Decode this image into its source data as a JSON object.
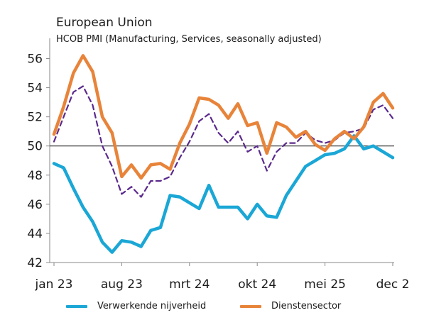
{
  "chart_data": {
    "type": "line",
    "title": "European Union",
    "subtitle": "HCOB PMI (Manufacturing, Services, seasonally adjusted)",
    "x_ticks": [
      "jan 23",
      "aug 23",
      "mrt 24",
      "okt 24",
      "mei 25",
      "dec 2"
    ],
    "ylim": [
      42,
      57
    ],
    "y_ticks": [
      "42",
      "44",
      "46",
      "48",
      "50",
      "52",
      "54",
      "56"
    ],
    "reference_line": 50,
    "x": [
      "jan 23",
      "feb 23",
      "mrt 23",
      "apr 23",
      "mei 23",
      "jun 23",
      "jul 23",
      "aug 23",
      "sep 23",
      "okt 23",
      "nov 23",
      "dec 23",
      "jan 24",
      "feb 24",
      "mrt 24",
      "apr 24",
      "mei 24",
      "jun 24",
      "jul 24",
      "aug 24",
      "sep 24",
      "okt 24",
      "nov 24",
      "dec 24",
      "jan 25",
      "feb 25",
      "mrt 25",
      "apr 25",
      "mei 25",
      "jun 25",
      "jul 25",
      "aug 25",
      "sep 25",
      "okt 25",
      "nov 25",
      "dec 25"
    ],
    "series": [
      {
        "name": "Verwerkende nijverheid",
        "color": "#1aa7d6",
        "style": "solid",
        "values": [
          48.8,
          48.5,
          47.1,
          45.8,
          44.8,
          43.4,
          42.7,
          43.5,
          43.4,
          43.1,
          44.2,
          44.4,
          46.6,
          46.5,
          46.1,
          45.7,
          47.3,
          45.8,
          45.8,
          45.8,
          45.0,
          46.0,
          45.2,
          45.1,
          46.6,
          47.6,
          48.6,
          49.0,
          49.4,
          49.5,
          49.8,
          50.7,
          49.8,
          50.0,
          49.6,
          49.2
        ]
      },
      {
        "name": "Dienstensector",
        "color": "#e8843a",
        "style": "solid",
        "values": [
          50.8,
          52.7,
          55.0,
          56.2,
          55.1,
          52.0,
          50.9,
          47.9,
          48.7,
          47.8,
          48.7,
          48.8,
          48.4,
          50.2,
          51.5,
          53.3,
          53.2,
          52.8,
          51.9,
          52.9,
          51.4,
          51.6,
          49.5,
          51.6,
          51.3,
          50.6,
          51.0,
          50.1,
          49.7,
          50.5,
          51.0,
          50.5,
          51.3,
          53.0,
          53.6,
          52.6
        ]
      },
      {
        "name": "",
        "color": "#5b2a8c",
        "style": "dashed",
        "values": [
          50.3,
          52.0,
          53.7,
          54.1,
          52.8,
          50.0,
          48.6,
          46.7,
          47.2,
          46.5,
          47.6,
          47.6,
          47.9,
          49.2,
          50.3,
          51.7,
          52.2,
          50.9,
          50.2,
          51.0,
          49.6,
          50.0,
          48.3,
          49.6,
          50.2,
          50.2,
          50.9,
          50.4,
          50.2,
          50.4,
          50.9,
          51.0,
          51.2,
          52.5,
          52.8,
          51.9
        ]
      }
    ],
    "legend": [
      {
        "label": "Verwerkende nijverheid",
        "color": "#1aa7d6"
      },
      {
        "label": "Dienstensector",
        "color": "#e8843a"
      }
    ],
    "grid": false,
    "legend_position": "bottom"
  }
}
